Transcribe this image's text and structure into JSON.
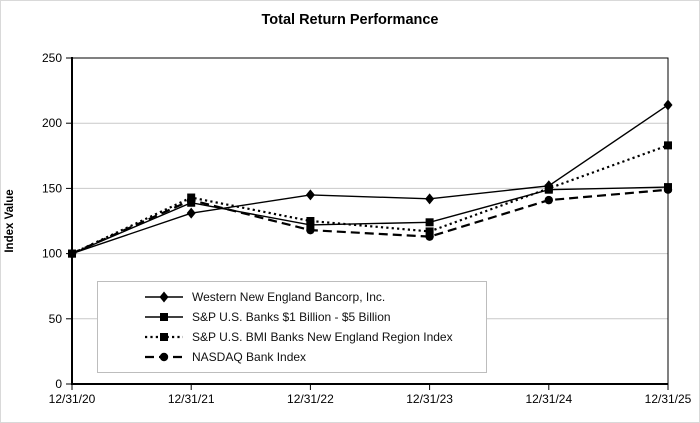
{
  "chart_data": {
    "type": "line",
    "title": "Total Return Performance",
    "xlabel": "",
    "ylabel": "Index Value",
    "x_labels": [
      "12/31/20",
      "12/31/21",
      "12/31/22",
      "12/31/23",
      "12/31/24",
      "12/31/25"
    ],
    "y_ticks": [
      0,
      50,
      100,
      150,
      200,
      250
    ],
    "ylim": [
      0,
      250
    ],
    "grid": "horizontal",
    "legend_position": "inside-bottom-left",
    "series": [
      {
        "name": "Western New England Bancorp, Inc.",
        "marker": "diamond",
        "line": "solid",
        "color": "#000000",
        "values": [
          100,
          131,
          145,
          142,
          152,
          214
        ]
      },
      {
        "name": "S&P U.S. Banks $1 Billion - $5 Billion",
        "marker": "square",
        "line": "solid",
        "color": "#000000",
        "values": [
          100,
          139,
          122,
          124,
          149,
          151
        ]
      },
      {
        "name": "S&P U.S. BMI Banks New England Region Index",
        "marker": "square",
        "line": "dotted",
        "color": "#000000",
        "values": [
          100,
          143,
          125,
          117,
          150,
          183
        ]
      },
      {
        "name": "NASDAQ Bank Index",
        "marker": "circle",
        "line": "dashed",
        "color": "#000000",
        "values": [
          100,
          141,
          118,
          113,
          141,
          149
        ]
      }
    ],
    "colors": {
      "axis": "#000000",
      "grid": "#c9c9c9",
      "background": "#ffffff",
      "legend_border": "#bdbdbd",
      "page_border": "#d9d9d9"
    }
  }
}
